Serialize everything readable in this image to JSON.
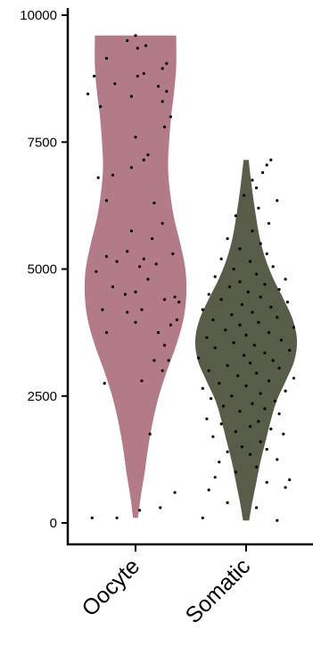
{
  "chart_data": {
    "type": "violin",
    "title": "",
    "xlabel": "",
    "ylabel": "",
    "ylim": [
      -450,
      10100
    ],
    "yticks": [
      0,
      2500,
      5000,
      7500,
      10000
    ],
    "ytick_labels": [
      "0",
      "2500",
      "5000",
      "7500",
      "10000"
    ],
    "grid": false,
    "legend": "none",
    "categories": [
      "Oocyte",
      "Somatic"
    ],
    "series": [
      {
        "category": "Oocyte",
        "color": "#b27b87",
        "range": [
          100,
          9600
        ],
        "density": [
          [
            100,
            0.05
          ],
          [
            500,
            0.1
          ],
          [
            1000,
            0.18
          ],
          [
            1500,
            0.25
          ],
          [
            2000,
            0.34
          ],
          [
            2500,
            0.46
          ],
          [
            3000,
            0.62
          ],
          [
            3500,
            0.8
          ],
          [
            4000,
            0.94
          ],
          [
            4500,
            1.0
          ],
          [
            5000,
            0.98
          ],
          [
            5500,
            0.88
          ],
          [
            6000,
            0.76
          ],
          [
            6500,
            0.68
          ],
          [
            7000,
            0.64
          ],
          [
            7500,
            0.66
          ],
          [
            8000,
            0.7
          ],
          [
            8500,
            0.76
          ],
          [
            9000,
            0.8
          ],
          [
            9600,
            0.8
          ]
        ],
        "points": [
          [
            -0.42,
            100
          ],
          [
            -0.18,
            100
          ],
          [
            0.04,
            250
          ],
          [
            0.24,
            300
          ],
          [
            0.38,
            600
          ],
          [
            0.14,
            1750
          ],
          [
            -0.3,
            2750
          ],
          [
            0.06,
            2800
          ],
          [
            0.26,
            3000
          ],
          [
            0.18,
            3200
          ],
          [
            0.32,
            3200
          ],
          [
            0.28,
            3500
          ],
          [
            -0.28,
            3750
          ],
          [
            0.22,
            3750
          ],
          [
            0.34,
            3900
          ],
          [
            0.0,
            3950
          ],
          [
            0.4,
            4000
          ],
          [
            -0.08,
            4150
          ],
          [
            0.06,
            4200
          ],
          [
            -0.32,
            4200
          ],
          [
            0.42,
            4350
          ],
          [
            0.28,
            4400
          ],
          [
            0.38,
            4450
          ],
          [
            -0.1,
            4500
          ],
          [
            0.0,
            4550
          ],
          [
            -0.22,
            4650
          ],
          [
            0.12,
            4800
          ],
          [
            -0.38,
            4950
          ],
          [
            0.04,
            5050
          ],
          [
            -0.18,
            5150
          ],
          [
            0.08,
            5200
          ],
          [
            0.2,
            5100
          ],
          [
            -0.28,
            5250
          ],
          [
            0.36,
            5300
          ],
          [
            -0.08,
            5350
          ],
          [
            0.16,
            5600
          ],
          [
            -0.04,
            5750
          ],
          [
            0.26,
            5900
          ],
          [
            0.18,
            6300
          ],
          [
            -0.28,
            6350
          ],
          [
            -0.36,
            6800
          ],
          [
            -0.22,
            6850
          ],
          [
            -0.04,
            7000
          ],
          [
            0.08,
            7150
          ],
          [
            0.12,
            7250
          ],
          [
            0.0,
            7600
          ],
          [
            0.28,
            7800
          ],
          [
            0.34,
            8000
          ],
          [
            -0.34,
            8200
          ],
          [
            0.26,
            8300
          ],
          [
            -0.04,
            8400
          ],
          [
            0.3,
            8500
          ],
          [
            -0.46,
            8450
          ],
          [
            0.22,
            8600
          ],
          [
            -0.2,
            8650
          ],
          [
            0.02,
            8800
          ],
          [
            0.08,
            8850
          ],
          [
            -0.4,
            8800
          ],
          [
            0.26,
            8950
          ],
          [
            0.3,
            9050
          ],
          [
            -0.28,
            9150
          ],
          [
            0.02,
            9350
          ],
          [
            0.1,
            9400
          ],
          [
            -0.08,
            9500
          ],
          [
            0.0,
            9600
          ]
        ]
      },
      {
        "category": "Somatic",
        "color": "#575d49",
        "range": [
          50,
          7150
        ],
        "density": [
          [
            50,
            0.06
          ],
          [
            400,
            0.12
          ],
          [
            800,
            0.2
          ],
          [
            1200,
            0.28
          ],
          [
            1600,
            0.38
          ],
          [
            2000,
            0.48
          ],
          [
            2400,
            0.6
          ],
          [
            2800,
            0.78
          ],
          [
            3200,
            0.95
          ],
          [
            3600,
            1.0
          ],
          [
            4000,
            0.92
          ],
          [
            4400,
            0.74
          ],
          [
            4800,
            0.54
          ],
          [
            5200,
            0.38
          ],
          [
            5600,
            0.27
          ],
          [
            6000,
            0.2
          ],
          [
            6400,
            0.14
          ],
          [
            6800,
            0.09
          ],
          [
            7150,
            0.05
          ]
        ],
        "points": [
          [
            -0.42,
            100
          ],
          [
            0.3,
            50
          ],
          [
            0.1,
            300
          ],
          [
            -0.18,
            400
          ],
          [
            0.38,
            700
          ],
          [
            -0.36,
            650
          ],
          [
            0.2,
            800
          ],
          [
            -0.3,
            900
          ],
          [
            0.42,
            850
          ],
          [
            -0.1,
            1000
          ],
          [
            0.1,
            1100
          ],
          [
            -0.26,
            1200
          ],
          [
            0.3,
            1250
          ],
          [
            0.04,
            1350
          ],
          [
            -0.18,
            1400
          ],
          [
            0.2,
            1450
          ],
          [
            -0.04,
            1500
          ],
          [
            0.14,
            1600
          ],
          [
            -0.32,
            1700
          ],
          [
            0.36,
            1750
          ],
          [
            -0.1,
            1800
          ],
          [
            0.24,
            1850
          ],
          [
            0.04,
            1900
          ],
          [
            -0.24,
            1950
          ],
          [
            0.12,
            2000
          ],
          [
            -0.38,
            2050
          ],
          [
            0.32,
            2150
          ],
          [
            -0.06,
            2200
          ],
          [
            0.18,
            2250
          ],
          [
            -0.22,
            2300
          ],
          [
            0.06,
            2350
          ],
          [
            0.28,
            2400
          ],
          [
            -0.34,
            2450
          ],
          [
            -0.14,
            2500
          ],
          [
            0.14,
            2550
          ],
          [
            0.38,
            2600
          ],
          [
            -0.42,
            2650
          ],
          [
            0.0,
            2700
          ],
          [
            -0.26,
            2750
          ],
          [
            0.22,
            2800
          ],
          [
            0.46,
            2850
          ],
          [
            -0.08,
            2900
          ],
          [
            0.1,
            2950
          ],
          [
            -0.36,
            3000
          ],
          [
            0.32,
            3050
          ],
          [
            -0.18,
            3100
          ],
          [
            0.04,
            3150
          ],
          [
            0.26,
            3200
          ],
          [
            -0.46,
            3250
          ],
          [
            -0.02,
            3300
          ],
          [
            0.18,
            3350
          ],
          [
            0.42,
            3400
          ],
          [
            -0.3,
            3450
          ],
          [
            0.08,
            3500
          ],
          [
            -0.12,
            3550
          ],
          [
            0.34,
            3600
          ],
          [
            -0.38,
            3650
          ],
          [
            0.0,
            3700
          ],
          [
            0.22,
            3750
          ],
          [
            -0.2,
            3800
          ],
          [
            0.46,
            3850
          ],
          [
            -0.06,
            3900
          ],
          [
            0.12,
            3950
          ],
          [
            -0.32,
            4000
          ],
          [
            0.3,
            4050
          ],
          [
            -0.14,
            4100
          ],
          [
            0.06,
            4150
          ],
          [
            -0.42,
            4200
          ],
          [
            0.24,
            4250
          ],
          [
            -0.04,
            4300
          ],
          [
            0.4,
            4350
          ],
          [
            -0.24,
            4400
          ],
          [
            0.14,
            4450
          ],
          [
            -0.36,
            4500
          ],
          [
            0.02,
            4550
          ],
          [
            0.32,
            4600
          ],
          [
            -0.16,
            4650
          ],
          [
            0.18,
            4700
          ],
          [
            -0.06,
            4750
          ],
          [
            0.38,
            4800
          ],
          [
            -0.3,
            4850
          ],
          [
            0.1,
            4900
          ],
          [
            -0.12,
            5000
          ],
          [
            0.26,
            5050
          ],
          [
            0.04,
            5150
          ],
          [
            -0.24,
            5200
          ],
          [
            0.2,
            5300
          ],
          [
            -0.06,
            5400
          ],
          [
            0.14,
            5500
          ],
          [
            -0.18,
            5600
          ],
          [
            0.06,
            5750
          ],
          [
            0.22,
            5900
          ],
          [
            -0.1,
            6050
          ],
          [
            0.12,
            6200
          ],
          [
            0.3,
            6350
          ],
          [
            -0.02,
            6450
          ],
          [
            0.1,
            6600
          ],
          [
            0.06,
            6750
          ],
          [
            0.16,
            6900
          ],
          [
            0.2,
            7050
          ],
          [
            0.24,
            7150
          ]
        ]
      }
    ]
  }
}
